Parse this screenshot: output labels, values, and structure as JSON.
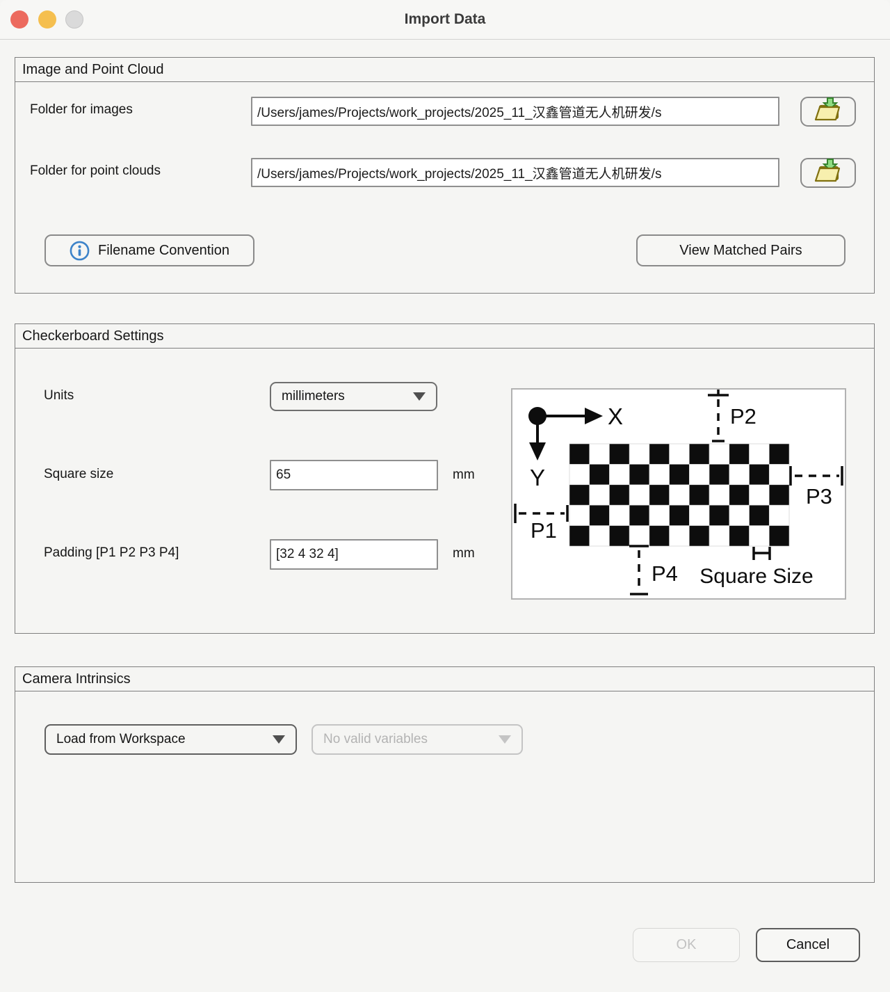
{
  "window": {
    "title": "Import Data"
  },
  "sections": {
    "data": {
      "title": "Image and Point Cloud",
      "images_label": "Folder for images",
      "images_path": "/Users/james/Projects/work_projects/2025_11_汉鑫管道无人机研发/s",
      "clouds_label": "Folder for point clouds",
      "clouds_path": "/Users/james/Projects/work_projects/2025_11_汉鑫管道无人机研发/s",
      "filename_convention": "Filename Convention",
      "view_matched_pairs": "View Matched Pairs"
    },
    "checkerboard": {
      "title": "Checkerboard Settings",
      "units_label": "Units",
      "units_value": "millimeters",
      "square_size_label": "Square size",
      "square_size_value": "65",
      "square_size_unit": "mm",
      "padding_label": "Padding [P1 P2 P3 P4]",
      "padding_value": "[32 4 32 4]",
      "padding_unit": "mm",
      "diagram": {
        "x_axis": "X",
        "y_axis": "Y",
        "p1": "P1",
        "p2": "P2",
        "p3": "P3",
        "p4": "P4",
        "square_size": "Square Size",
        "rows": 5,
        "cols": 11
      }
    },
    "intrinsics": {
      "title": "Camera Intrinsics",
      "source_value": "Load from Workspace",
      "variables_value": "No valid variables"
    }
  },
  "footer": {
    "ok": "OK",
    "cancel": "Cancel"
  },
  "colors": {
    "traffic_red": "#ec6a5e",
    "traffic_yellow": "#f5bf4f",
    "traffic_gray": "#dadada",
    "info_blue": "#3d83c9",
    "folder_fill": "#f7efae",
    "folder_outline": "#80700f",
    "arrow_fill": "#8edc82",
    "arrow_outline": "#36822e"
  }
}
